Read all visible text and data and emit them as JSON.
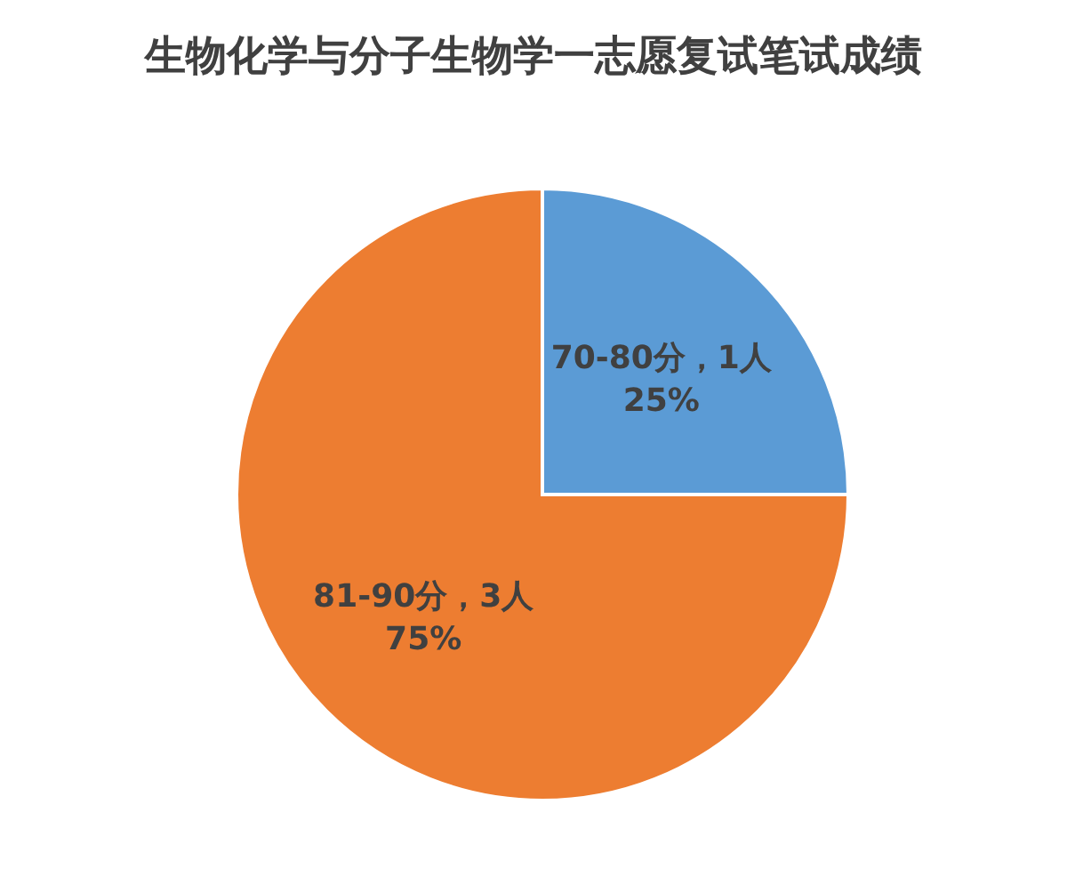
{
  "chart_data": {
    "type": "pie",
    "title": "生物化学与分子生物学一志愿复试笔试成绩",
    "categories": [
      "70-80分，1人",
      "81-90分，3人"
    ],
    "values": [
      25,
      75
    ],
    "colors": [
      "#5b9bd5",
      "#ed7d31"
    ],
    "value_labels": [
      "25%",
      "75%"
    ],
    "legend": false
  }
}
